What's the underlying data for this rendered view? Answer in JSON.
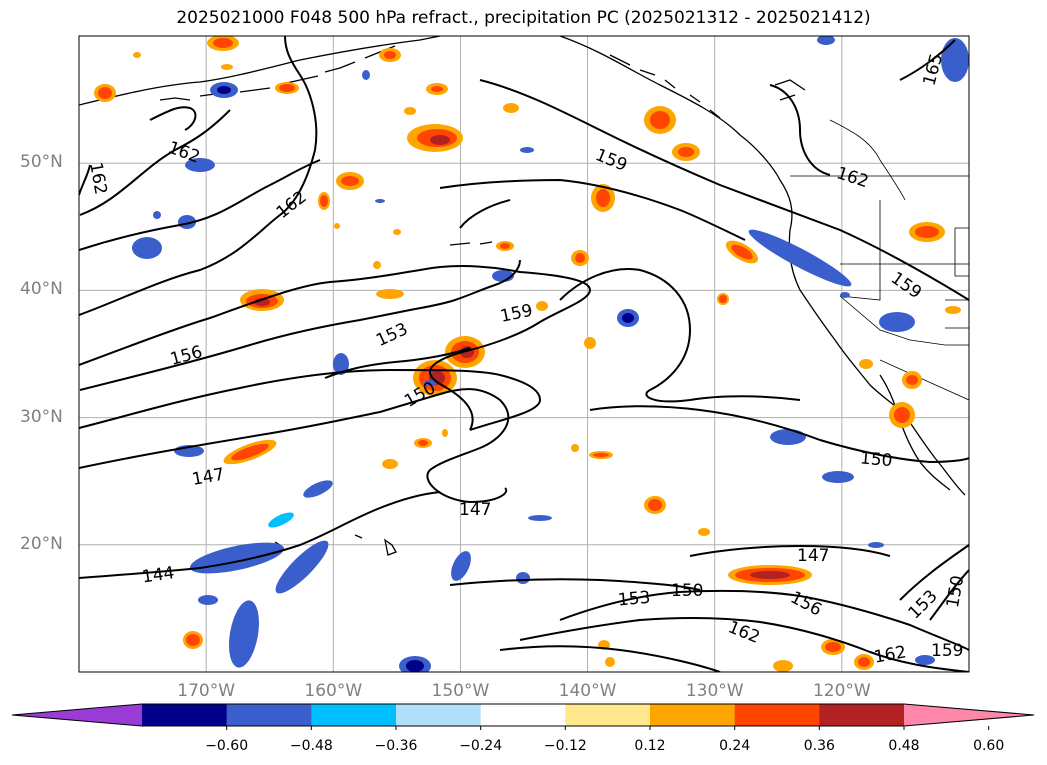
{
  "title": "2025021000 F048 500 hPa refract., precipitation PC (2025021312 - 2025021412)",
  "map": {
    "extent": {
      "lon_min": -180,
      "lon_max": -110,
      "lat_min": 10,
      "lat_max": 60
    },
    "lat_labels": [
      {
        "lat": 50,
        "text": "50°N"
      },
      {
        "lat": 40,
        "text": "40°N"
      },
      {
        "lat": 30,
        "text": "30°N"
      },
      {
        "lat": 20,
        "text": "20°N"
      }
    ],
    "lon_labels": [
      {
        "lon": -170,
        "text": "170°W"
      },
      {
        "lon": -160,
        "text": "160°W"
      },
      {
        "lon": -150,
        "text": "150°W"
      },
      {
        "lon": -140,
        "text": "140°W"
      },
      {
        "lon": -130,
        "text": "130°W"
      },
      {
        "lon": -120,
        "text": "120°W"
      }
    ],
    "contour_labels": [
      "162",
      "162",
      "162",
      "159",
      "159",
      "159",
      "156",
      "153",
      "153",
      "147",
      "147",
      "147",
      "144",
      "150",
      "150",
      "150",
      "153",
      "156",
      "162",
      "162",
      "159",
      "165",
      "150",
      "162"
    ]
  },
  "colorbar": {
    "colors": [
      "#9a3bd6",
      "#00008b",
      "#3a5fcd",
      "#00bfff",
      "#b0e0fa",
      "#ffffff",
      "#ffe98c",
      "#ffa500",
      "#ff4500",
      "#b22222",
      "#ff88aa"
    ],
    "ticks": [
      "−0.60",
      "−0.48",
      "−0.36",
      "−0.24",
      "−0.12",
      "0.12",
      "0.24",
      "0.36",
      "0.48",
      "0.60"
    ]
  }
}
